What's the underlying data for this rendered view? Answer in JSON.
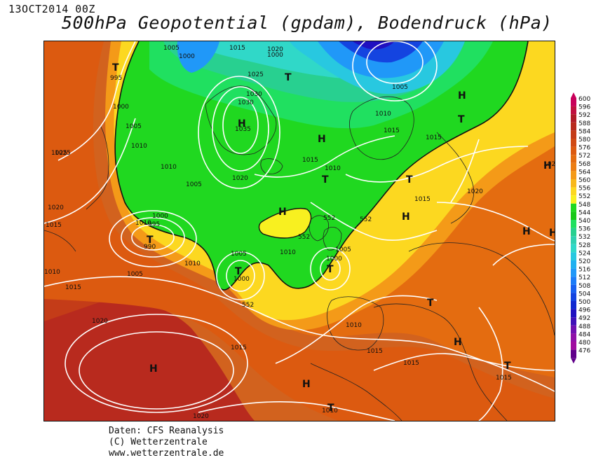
{
  "header": {
    "date": "13OCT2014 00Z",
    "title": "500hPa Geopotential (gpdam), Bodendruck (hPa)"
  },
  "footer": {
    "line1": "Daten: CFS Reanalysis",
    "line2": "(C) Wetterzentrale",
    "line3": "www.wetterzentrale.de"
  },
  "legend": {
    "values": [
      "600",
      "596",
      "592",
      "588",
      "584",
      "580",
      "576",
      "572",
      "568",
      "564",
      "560",
      "556",
      "552",
      "548",
      "544",
      "540",
      "536",
      "532",
      "528",
      "524",
      "520",
      "516",
      "512",
      "508",
      "504",
      "500",
      "496",
      "492",
      "488",
      "484",
      "480",
      "476"
    ],
    "colors": [
      "#c8005a",
      "#c01040",
      "#b01c28",
      "#b82a1e",
      "#c43c18",
      "#d04a14",
      "#dc5a10",
      "#e46c10",
      "#ec7e14",
      "#f49a18",
      "#f8b81c",
      "#fcd820",
      "#f8f020",
      "#20d820",
      "#18c818",
      "#20e060",
      "#28d090",
      "#30d0b0",
      "#30d8c8",
      "#28c8e0",
      "#20b0f0",
      "#2098f8",
      "#1c7cf8",
      "#1860f0",
      "#1444e0",
      "#1028d0",
      "#2010c0",
      "#4010b8",
      "#7010b0",
      "#9010a8",
      "#a00ca0",
      "#60008a"
    ]
  },
  "map": {
    "centers": [
      {
        "label": "T"
      },
      {
        "label": "H"
      },
      {
        "label": "T"
      },
      {
        "label": "H"
      },
      {
        "label": "H"
      },
      {
        "label": "T"
      },
      {
        "label": "H"
      },
      {
        "label": "T"
      },
      {
        "label": "H"
      },
      {
        "label": "T"
      },
      {
        "label": "T"
      },
      {
        "label": "H"
      },
      {
        "label": "H"
      },
      {
        "label": "T"
      },
      {
        "label": "T"
      },
      {
        "label": "H"
      },
      {
        "label": "T"
      },
      {
        "label": "H"
      },
      {
        "label": "T"
      },
      {
        "label": "H"
      },
      {
        "label": "H"
      },
      {
        "label": "T"
      }
    ],
    "pressure_labels": [
      "1005",
      "1000",
      "1015",
      "1020",
      "995",
      "1000",
      "1025",
      "1030",
      "1035",
      "1030",
      "1005",
      "1000",
      "1005",
      "1010",
      "1015",
      "1015",
      "1010",
      "1025",
      "1010",
      "1005",
      "1020",
      "1015",
      "1010",
      "1020",
      "1015",
      "1020",
      "1025",
      "1010",
      "1000",
      "995",
      "990",
      "1005",
      "1010",
      "1015",
      "1005",
      "1000",
      "1010",
      "1005",
      "1000",
      "1010",
      "1015",
      "1015",
      "1020",
      "1015",
      "1015",
      "1020",
      "1010",
      "1015",
      "1010",
      "1020"
    ],
    "geopotential_labels": [
      "552",
      "552",
      "552",
      "552"
    ]
  }
}
